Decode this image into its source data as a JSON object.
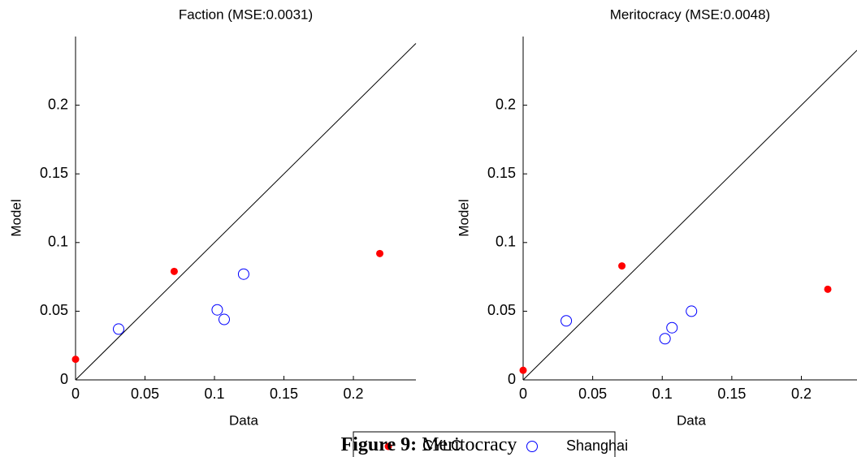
{
  "chart_data": [
    {
      "type": "scatter",
      "title": "Faction (MSE:0.0031)",
      "x_label": "Data",
      "y_label": "Model",
      "xlim": [
        0,
        0.245
      ],
      "ylim": [
        0,
        0.25
      ],
      "xticks": [
        0,
        0.05,
        0.1,
        0.15,
        0.2
      ],
      "yticks": [
        0,
        0.05,
        0.1,
        0.15,
        0.2
      ],
      "series": [
        {
          "name": "CYLC",
          "color": "#ff0000",
          "marker": "filled",
          "x": [
            0,
            0.071,
            0.219
          ],
          "values": [
            0.015,
            0.079,
            0.092
          ]
        },
        {
          "name": "Shanghai",
          "color": "#0000ff",
          "marker": "open",
          "x": [
            0.031,
            0.102,
            0.107,
            0.121
          ],
          "values": [
            0.037,
            0.051,
            0.044,
            0.077
          ]
        }
      ]
    },
    {
      "type": "scatter",
      "title": "Meritocracy (MSE:0.0048)",
      "x_label": "Data",
      "y_label": "Model",
      "xlim": [
        0,
        0.24
      ],
      "ylim": [
        0,
        0.25
      ],
      "xticks": [
        0,
        0.05,
        0.1,
        0.15,
        0.2
      ],
      "yticks": [
        0,
        0.05,
        0.1,
        0.15,
        0.2
      ],
      "series": [
        {
          "color": "#ff0000",
          "marker": "filled",
          "x": [
            0,
            0.071,
            0.219
          ],
          "values": [
            0.007,
            0.083,
            0.066
          ]
        },
        {
          "color": "#0000ff",
          "marker": "open",
          "x": [
            0.031,
            0.102,
            0.107,
            0.121
          ],
          "values": [
            0.043,
            0.03,
            0.038,
            0.05
          ]
        }
      ]
    }
  ],
  "caption": {
    "label": "Figure 9:",
    "text": "Meritocracy"
  }
}
